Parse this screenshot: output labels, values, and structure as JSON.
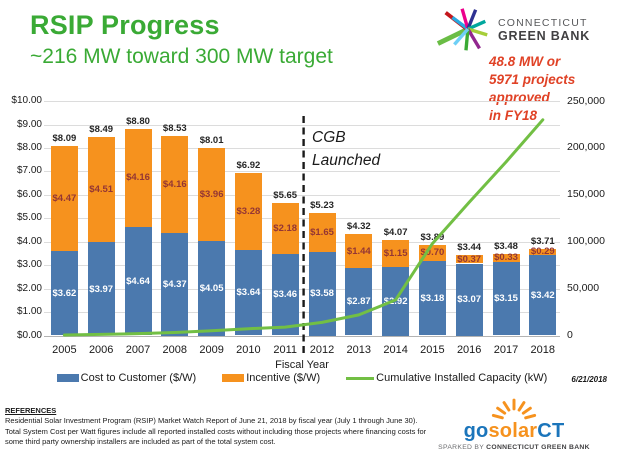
{
  "header": {
    "title": "RSIP Progress",
    "subtitle": "~216 MW toward 300 MW target"
  },
  "colors": {
    "brand_green": "#3aaa35",
    "callout_red": "#e04226",
    "total_label": "#262626"
  },
  "brand_logo": {
    "line1": "CONNECTICUT",
    "line2": "GREEN BANK"
  },
  "callout": {
    "lines": [
      "48.8 MW or",
      "5971 projects",
      "approved",
      "in FY18"
    ]
  },
  "chart_data": {
    "type": "bar",
    "subtype": "stacked-bars-with-line-overlay",
    "categories": [
      "2005",
      "2006",
      "2007",
      "2008",
      "2009",
      "2010",
      "2011",
      "2012",
      "2013",
      "2014",
      "2015",
      "2016",
      "2017",
      "2018"
    ],
    "series": [
      {
        "name": "Cost to Customer ($/W)",
        "type": "bar",
        "axis": "left",
        "color": "#4b79ae",
        "label_color": "#ffffff",
        "values": [
          3.62,
          3.97,
          4.64,
          4.37,
          4.05,
          3.64,
          3.46,
          3.58,
          2.87,
          2.92,
          3.18,
          3.07,
          3.15,
          3.42
        ],
        "labels": [
          "$3.62",
          "$3.97",
          "$4.64",
          "$4.37",
          "$4.05",
          "$3.64",
          "$3.46",
          "$3.58",
          "$2.87",
          "$2.92",
          "$3.18",
          "$3.07",
          "$3.15",
          "$3.42"
        ]
      },
      {
        "name": "Incentive ($/W)",
        "type": "bar",
        "axis": "left",
        "color": "#f6921e",
        "label_color": "#943634",
        "values": [
          4.47,
          4.51,
          4.16,
          4.16,
          3.96,
          3.28,
          2.18,
          1.65,
          1.44,
          1.15,
          0.7,
          0.37,
          0.33,
          0.29
        ],
        "labels": [
          "$4.47",
          "$4.51",
          "$4.16",
          "$4.16",
          "$3.96",
          "$3.28",
          "$2.18",
          "$1.65",
          "$1.44",
          "$1.15",
          "$0.70",
          "$0.37",
          "$0.33",
          "$0.29"
        ]
      },
      {
        "name": "Cumulative Installed Capacity (kW)",
        "type": "line",
        "axis": "right",
        "color": "#72bf44",
        "values": [
          500,
          1200,
          2000,
          3200,
          5000,
          7200,
          9000,
          14000,
          22000,
          38000,
          98000,
          142000,
          185000,
          230000
        ]
      }
    ],
    "totals": {
      "values": [
        8.09,
        8.49,
        8.8,
        8.53,
        8.01,
        6.92,
        5.65,
        5.23,
        4.32,
        4.07,
        3.89,
        3.44,
        3.48,
        3.71
      ],
      "labels": [
        "$8.09",
        "$8.49",
        "$8.80",
        "$8.53",
        "$8.01",
        "$6.92",
        "$5.65",
        "$5.23",
        "$4.32",
        "$4.07",
        "$3.89",
        "$3.44",
        "$3.48",
        "$3.71"
      ]
    },
    "xlabel": "Fiscal Year",
    "left_axis": {
      "min": 0,
      "max": 10,
      "step": 1,
      "ticks": [
        "$0.00",
        "$1.00",
        "$2.00",
        "$3.00",
        "$4.00",
        "$5.00",
        "$6.00",
        "$7.00",
        "$8.00",
        "$9.00",
        "$10.00"
      ]
    },
    "right_axis": {
      "min": 0,
      "max": 250000,
      "step": 50000,
      "ticks": [
        "0",
        "50,000",
        "100,000",
        "150,000",
        "200,000",
        "250,000"
      ]
    },
    "grid": true,
    "legend_position": "bottom",
    "event_marker": {
      "label_lines": [
        "CGB",
        "Launched"
      ],
      "between": [
        "2011",
        "2012"
      ]
    }
  },
  "date_label": "6/21/2018",
  "references": {
    "heading": "REFERENCES",
    "body": "Residential Solar Investment Program (RSIP) Market Watch Report of June 21, 2018 by fiscal year (July 1 through June 30). Total System Cost per Watt figures include all reported installed costs without including those projects where financing costs for some third party ownership installers are included as part of the total system cost."
  },
  "footer_logo": {
    "go": "go",
    "solar": "solar",
    "ct": "CT",
    "tagline_prefix": "SPARKED BY ",
    "tagline_bold": "CONNECTICUT GREEN BANK"
  }
}
